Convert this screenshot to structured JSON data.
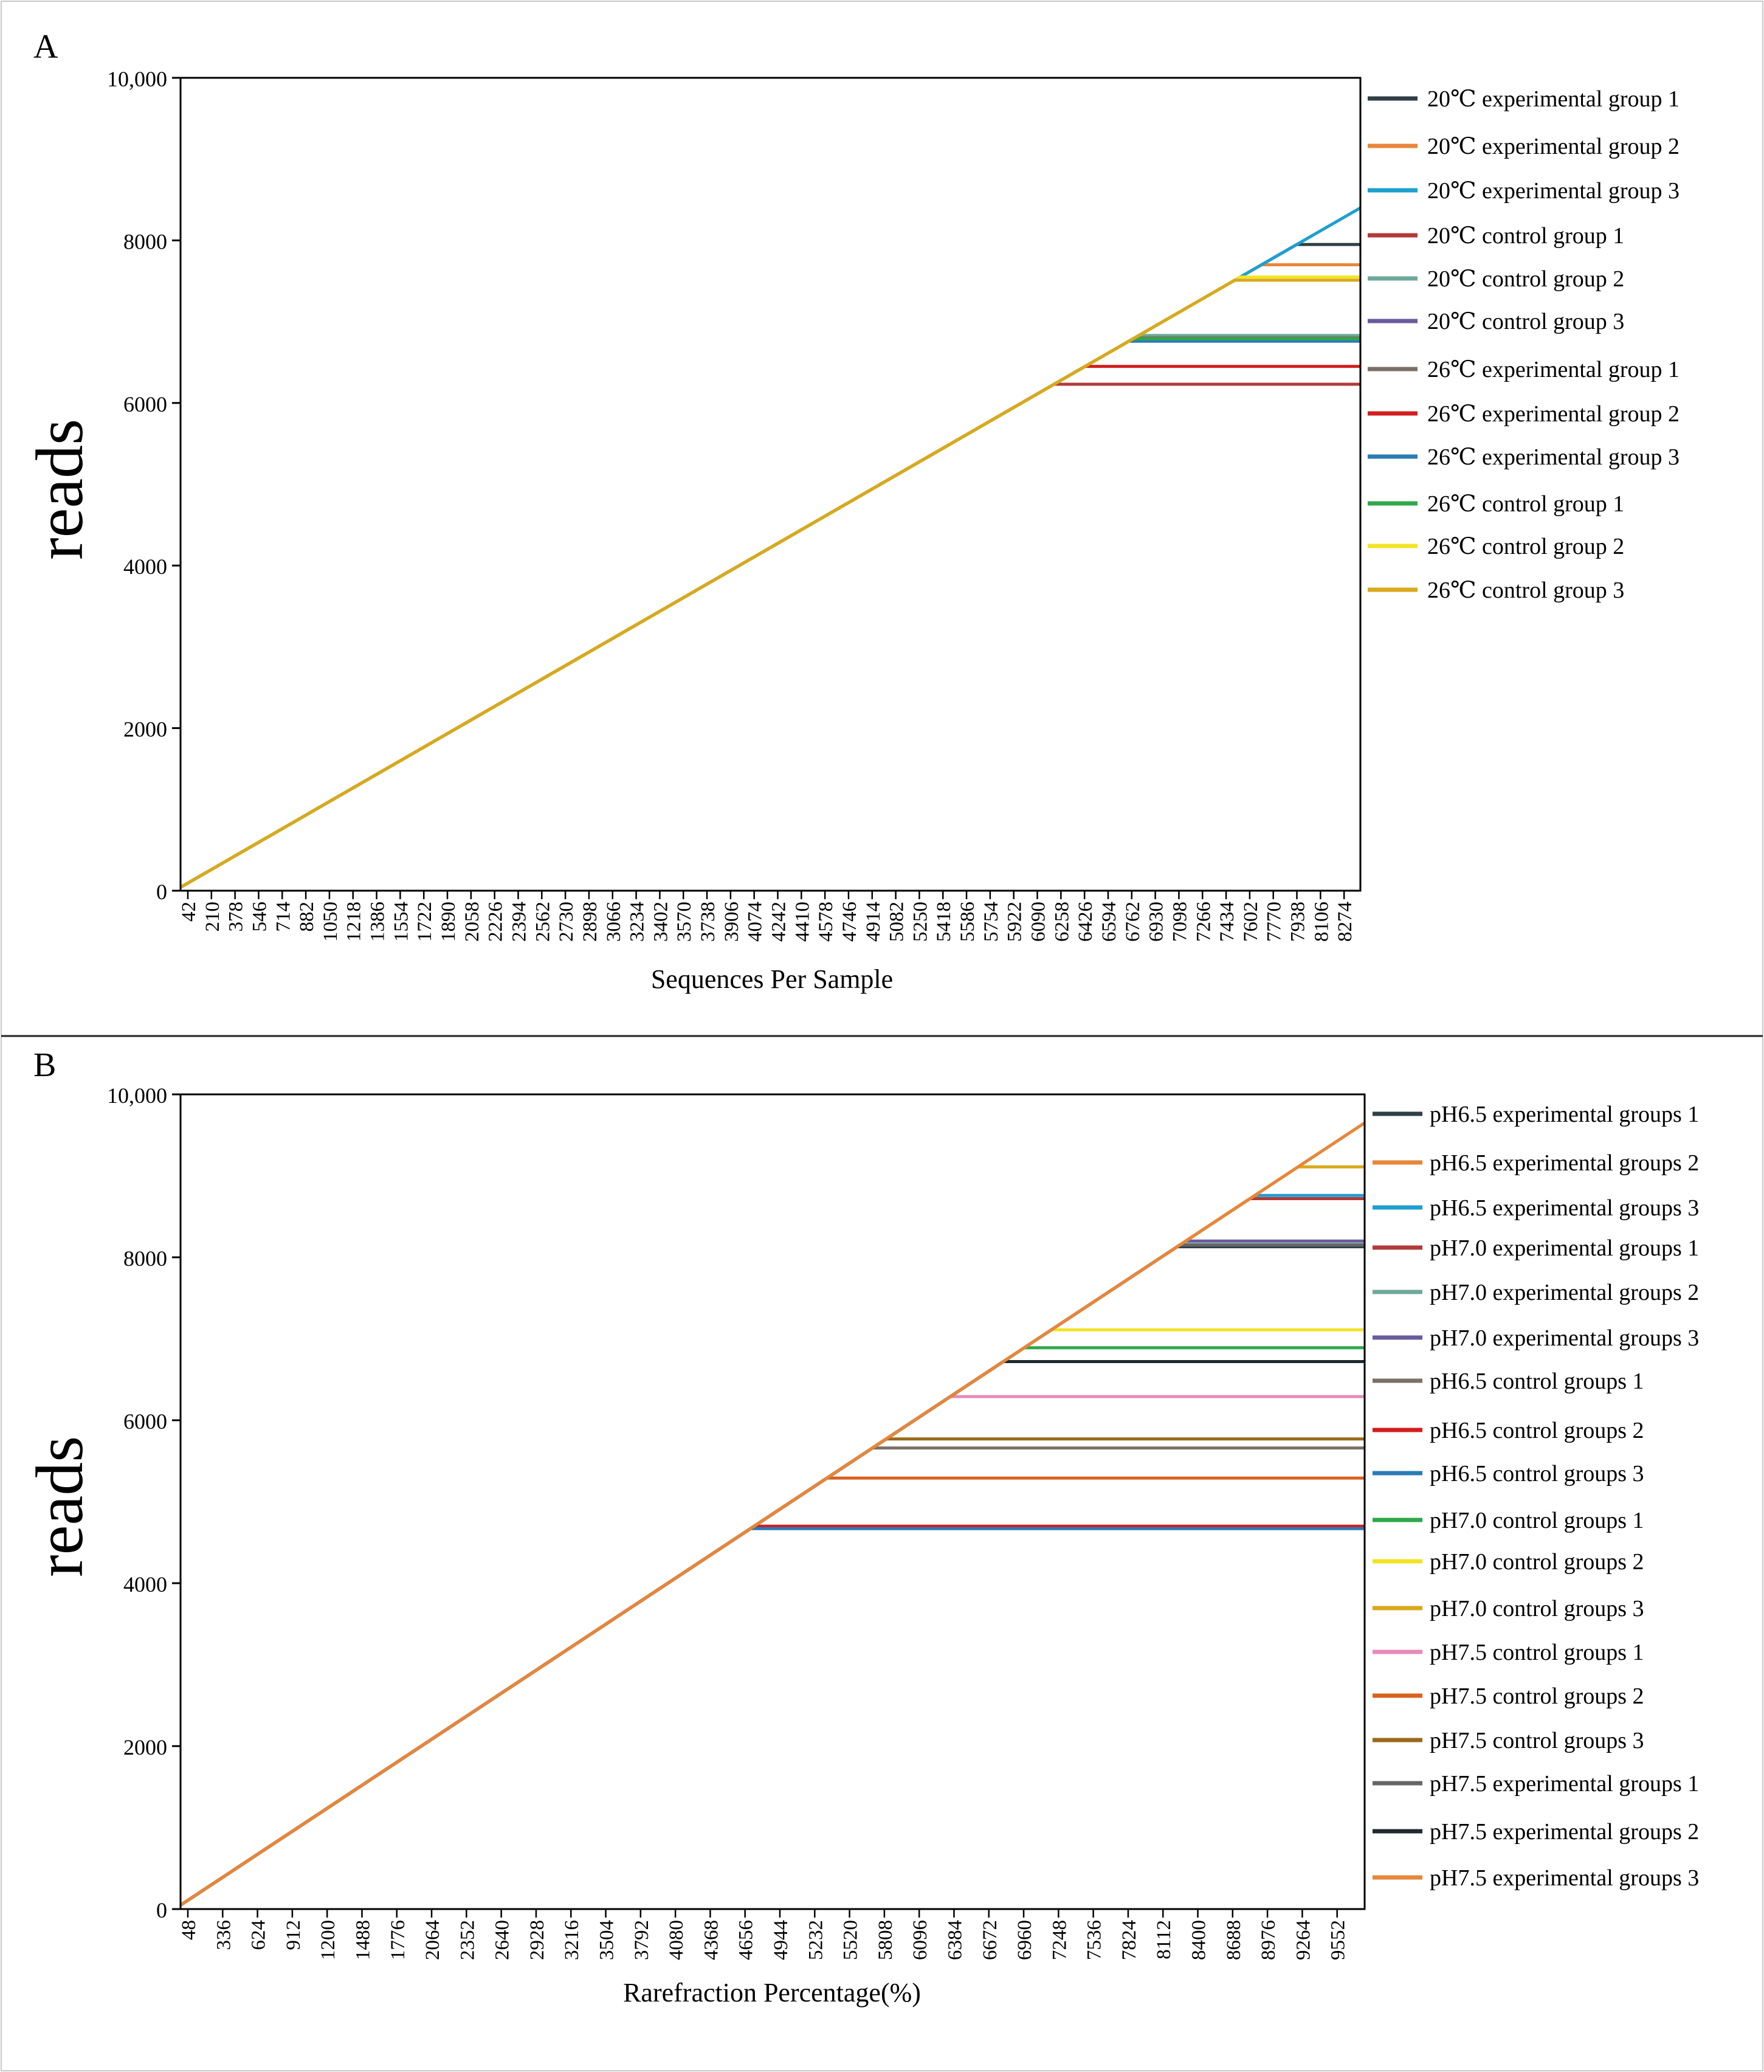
{
  "chart_data": [
    {
      "type": "line",
      "panel_label": "A",
      "title": "",
      "xlabel": "Sequences Per Sample",
      "ylabel": "reads",
      "ylim": [
        0,
        10000
      ],
      "xlim": [
        42,
        8400
      ],
      "ytick_labels": [
        "0",
        "2000",
        "4000",
        "6000",
        "8000",
        "10,000"
      ],
      "yticks": [
        0,
        2000,
        4000,
        6000,
        8000,
        10000
      ],
      "xtick_labels": [
        "42",
        "210",
        "378",
        "546",
        "714",
        "882",
        "1050",
        "1218",
        "1386",
        "1554",
        "1722",
        "1890",
        "2058",
        "2226",
        "2394",
        "2562",
        "2730",
        "2898",
        "3066",
        "3234",
        "3402",
        "3570",
        "3738",
        "3906",
        "4074",
        "4242",
        "4410",
        "4578",
        "4746",
        "4914",
        "5082",
        "5250",
        "5418",
        "5586",
        "5754",
        "5922",
        "6090",
        "6258",
        "6426",
        "6594",
        "6762",
        "6930",
        "7098",
        "7266",
        "7434",
        "7602",
        "7770",
        "7938",
        "8106",
        "8274"
      ],
      "legend_position": "right",
      "series": [
        {
          "name": "20℃  experimental group 1",
          "color": "#2f3f46",
          "plateau": 7950
        },
        {
          "name": "20℃  experimental group 2",
          "color": "#e8863a",
          "plateau": 7700
        },
        {
          "name": "20℃  experimental group 3",
          "color": "#1e9fd0",
          "plateau": 8400
        },
        {
          "name": "20℃  control group 1",
          "color": "#b23a3a",
          "plateau": 6230
        },
        {
          "name": "20℃  control group 2",
          "color": "#6fa89a",
          "plateau": 6830
        },
        {
          "name": "20℃  control group 3",
          "color": "#6a5a9e",
          "plateau": 6780
        },
        {
          "name": "26℃  experimental group 1",
          "color": "#7a7068",
          "plateau": 6800
        },
        {
          "name": "26℃  experimental group 2",
          "color": "#d21e1e",
          "plateau": 6450
        },
        {
          "name": "26℃  experimental group 3",
          "color": "#2b7bb5",
          "plateau": 6760
        },
        {
          "name": "26℃  control group 1",
          "color": "#2fa84a",
          "plateau": 6790
        },
        {
          "name": "26℃  control group 2",
          "color": "#f2e424",
          "plateau": 7550
        },
        {
          "name": "26℃  control group 3",
          "color": "#d9a91a",
          "plateau": 7510
        }
      ]
    },
    {
      "type": "line",
      "panel_label": "B",
      "title": "",
      "xlabel": "Rarefraction Percentage(%)",
      "ylabel": "reads",
      "ylim": [
        0,
        10000
      ],
      "xlim": [
        48,
        9650
      ],
      "ytick_labels": [
        "0",
        "2000",
        "4000",
        "6000",
        "8000",
        "10,000"
      ],
      "yticks": [
        0,
        2000,
        4000,
        6000,
        8000,
        10000
      ],
      "xtick_labels": [
        "48",
        "336",
        "624",
        "912",
        "1200",
        "1488",
        "1776",
        "2064",
        "2352",
        "2640",
        "2928",
        "3216",
        "3504",
        "3792",
        "4080",
        "4368",
        "4656",
        "4944",
        "5232",
        "5520",
        "5808",
        "6096",
        "6384",
        "6672",
        "6960",
        "7248",
        "7536",
        "7824",
        "8112",
        "8400",
        "8688",
        "8976",
        "9264",
        "9552"
      ],
      "legend_position": "right",
      "series": [
        {
          "name": "pH6.5 experimental groups 1",
          "color": "#2f3f46",
          "plateau": 8130
        },
        {
          "name": "pH6.5 experimental groups 2",
          "color": "#e8863a",
          "plateau": 9650
        },
        {
          "name": "pH6.5 experimental groups 3",
          "color": "#1e9fd0",
          "plateau": 8760
        },
        {
          "name": "pH7.0 experimental groups 1",
          "color": "#b23a3a",
          "plateau": 8720
        },
        {
          "name": "pH7.0 experimental groups 2",
          "color": "#6fa89a",
          "plateau": 8160
        },
        {
          "name": "pH7.0 experimental groups 3",
          "color": "#6a5a9e",
          "plateau": 8200
        },
        {
          "name": "pH6.5 control groups 1",
          "color": "#7a7068",
          "plateau": 5660
        },
        {
          "name": "pH6.5 control groups 2",
          "color": "#d21e1e",
          "plateau": 4700
        },
        {
          "name": "pH6.5 control groups 3",
          "color": "#2b7bb5",
          "plateau": 4670
        },
        {
          "name": "pH7.0 control groups 1",
          "color": "#2fa84a",
          "plateau": 6890
        },
        {
          "name": "pH7.0 control groups 2",
          "color": "#f2e424",
          "plateau": 7110
        },
        {
          "name": "pH7.0 control groups 3",
          "color": "#d9a91a",
          "plateau": 9110
        },
        {
          "name": "pH7.5 control groups 1",
          "color": "#e58bb8",
          "plateau": 6290
        },
        {
          "name": "pH7.5 control groups 2",
          "color": "#d9621e",
          "plateau": 5290
        },
        {
          "name": "pH7.5 control groups 3",
          "color": "#9a6a1a",
          "plateau": 5770
        },
        {
          "name": "pH7.5 experimental groups 1",
          "color": "#666666",
          "plateau": 8150
        },
        {
          "name": "pH7.5 experimental groups 2",
          "color": "#1f2a30",
          "plateau": 6720
        },
        {
          "name": "pH7.5 experimental groups 3",
          "color": "#e8863a",
          "plateau": 9650
        }
      ]
    }
  ]
}
